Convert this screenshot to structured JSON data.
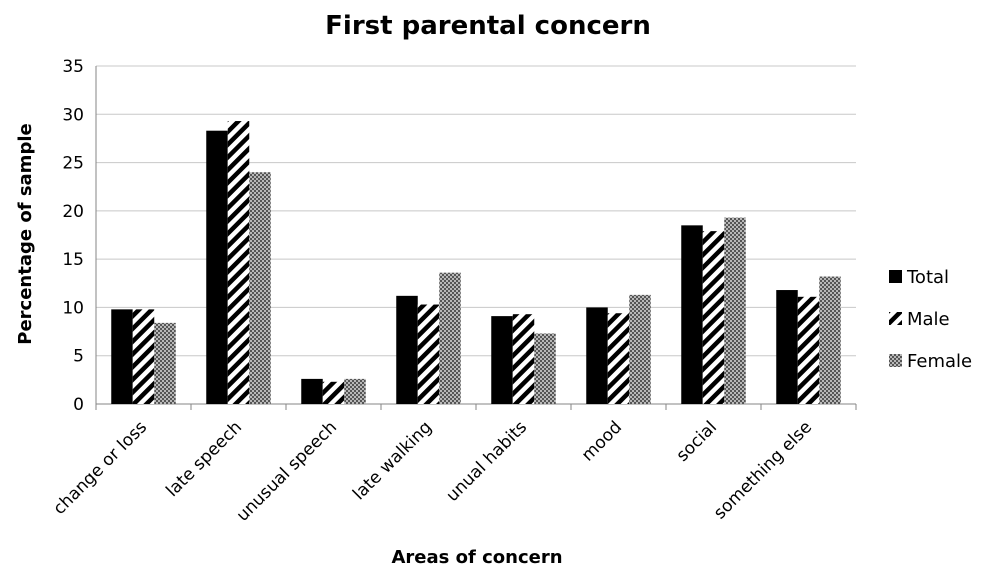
{
  "chart_data": {
    "type": "bar",
    "title": "First parental concern",
    "xlabel": "Areas of concern",
    "ylabel": "Percentage of sample",
    "categories": [
      "change or loss",
      "late speech",
      "unusual speech",
      "late walking",
      "unual habits",
      "mood",
      "social",
      "something else"
    ],
    "series": [
      {
        "name": "Total",
        "pattern": "solid",
        "values": [
          9.8,
          28.3,
          2.6,
          11.2,
          9.1,
          10.0,
          18.5,
          11.8
        ]
      },
      {
        "name": "Male",
        "pattern": "diagonal-stripes",
        "values": [
          9.8,
          29.3,
          2.3,
          10.3,
          9.3,
          9.4,
          17.9,
          11.1
        ]
      },
      {
        "name": "Female",
        "pattern": "checker",
        "values": [
          8.4,
          24.0,
          2.6,
          13.6,
          7.3,
          11.3,
          19.3,
          13.2
        ]
      }
    ],
    "yticks": [
      "0",
      "5",
      "10",
      "15",
      "20",
      "25",
      "30",
      "35"
    ],
    "ylim": [
      0,
      35
    ],
    "grid": true,
    "legend_position": "right",
    "colors": {
      "bar": "#000000",
      "grid": "#c8c8c8",
      "axis": "#868686"
    }
  }
}
